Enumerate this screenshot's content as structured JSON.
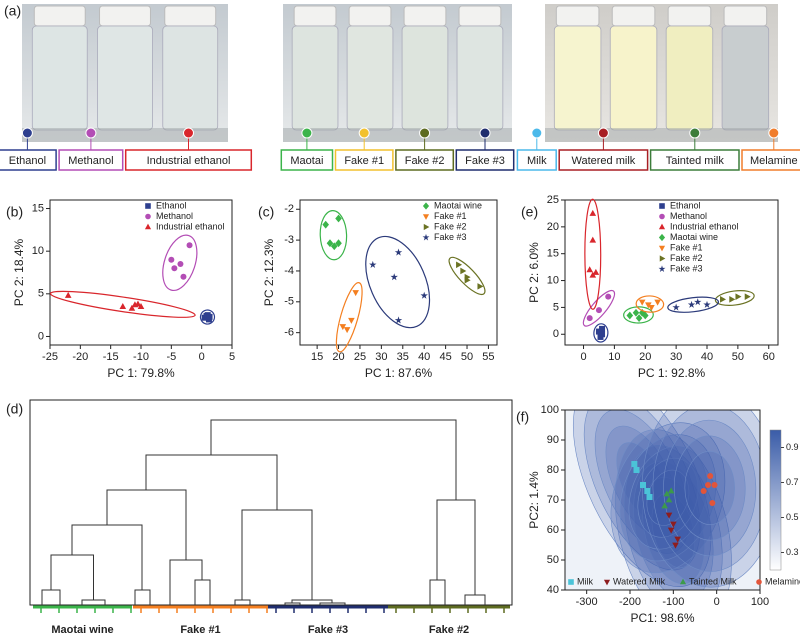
{
  "photos": {
    "panel": "(a)",
    "sets": [
      {
        "labels": [
          {
            "text": "Ethanol",
            "color": "#2e3f8f"
          },
          {
            "text": "Methanol",
            "color": "#b34db5"
          },
          {
            "text": "Industrial ethanol",
            "color": "#d9262c"
          }
        ]
      },
      {
        "labels": [
          {
            "text": "Maotai",
            "color": "#3bb44a"
          },
          {
            "text": "Fake #1",
            "color": "#f2c12e"
          },
          {
            "text": "Fake #2",
            "color": "#5d6b20"
          },
          {
            "text": "Fake #3",
            "color": "#1f2d6e"
          }
        ]
      },
      {
        "labels": [
          {
            "text": "Milk",
            "color": "#4bb9ea"
          },
          {
            "text": "Watered milk",
            "color": "#a81f24"
          },
          {
            "text": "Tainted milk",
            "color": "#3c7d3a"
          },
          {
            "text": "Melamine",
            "color": "#f07d2c"
          }
        ]
      }
    ]
  },
  "chart_data": [
    {
      "type": "scatter",
      "panel": "(b)",
      "xlabel": "PC 1: 79.8%",
      "ylabel": "PC 2: 18.4%",
      "xlim": [
        -25,
        5
      ],
      "xticks": [
        -25,
        -20,
        -15,
        -10,
        -5,
        0,
        5
      ],
      "ylim": [
        -1,
        16
      ],
      "yticks": [
        0,
        5,
        10,
        15
      ],
      "ellipses": true,
      "series": [
        {
          "name": "Ethanol",
          "color": "#2e3f8f",
          "marker": "square",
          "x": [
            0.5,
            1,
            1.2,
            0.8,
            1.3
          ],
          "y": [
            2.2,
            2.5,
            2.0,
            2.4,
            2.3
          ]
        },
        {
          "name": "Methanol",
          "color": "#b34db5",
          "marker": "circle",
          "x": [
            -2,
            -3.5,
            -4.5,
            -3,
            -5
          ],
          "y": [
            10.7,
            8.5,
            8,
            7,
            9
          ]
        },
        {
          "name": "Industrial ethanol",
          "color": "#d9262c",
          "marker": "tri-up",
          "x": [
            -22,
            -13,
            -11,
            -10.5,
            -10,
            -11.5
          ],
          "y": [
            4.8,
            3.5,
            3.7,
            3.8,
            3.5,
            3.3
          ]
        }
      ]
    },
    {
      "type": "scatter",
      "panel": "(c)",
      "xlabel": "PC 1: 87.6%",
      "ylabel": "PC 2: 12.3%",
      "xlim": [
        11,
        57
      ],
      "xticks": [
        15,
        20,
        25,
        30,
        35,
        40,
        45,
        50,
        55
      ],
      "ylim": [
        -6.4,
        -1.7
      ],
      "yticks": [
        -2,
        -3,
        -4,
        -5,
        -6
      ],
      "ellipses": true,
      "series": [
        {
          "name": "Maotai wine",
          "color": "#3bb44a",
          "marker": "diamond",
          "x": [
            17,
            20,
            18,
            19,
            20
          ],
          "y": [
            -2.5,
            -2.3,
            -3.1,
            -3.2,
            -3.1
          ]
        },
        {
          "name": "Fake #1",
          "color": "#f47f20",
          "marker": "tri-down",
          "x": [
            24,
            23,
            21,
            22
          ],
          "y": [
            -4.7,
            -5.6,
            -5.8,
            -5.9
          ]
        },
        {
          "name": "Fake #2",
          "color": "#6b7324",
          "marker": "tri-right",
          "x": [
            48,
            49,
            50,
            50,
            53
          ],
          "y": [
            -3.8,
            -4.0,
            -4.2,
            -4.3,
            -4.5
          ]
        },
        {
          "name": "Fake #3",
          "color": "#2b3a7a",
          "marker": "star",
          "x": [
            28,
            34,
            33,
            34,
            40
          ],
          "y": [
            -3.8,
            -3.4,
            -4.2,
            -5.6,
            -4.8
          ]
        }
      ]
    },
    {
      "type": "scatter",
      "panel": "(e)",
      "xlabel": "PC 1: 92.8%",
      "ylabel": "PC 2: 6.0%",
      "xlim": [
        -6,
        63
      ],
      "xticks": [
        0,
        10,
        20,
        30,
        40,
        50,
        60
      ],
      "ylim": [
        -2,
        25
      ],
      "yticks": [
        0,
        5,
        10,
        15,
        20,
        25
      ],
      "ellipses": true,
      "series": [
        {
          "name": "Ethanol",
          "color": "#2e3f8f",
          "marker": "square",
          "x": [
            5,
            6,
            5.5,
            6
          ],
          "y": [
            0.5,
            1,
            -0.5,
            0
          ]
        },
        {
          "name": "Methanol",
          "color": "#b34db5",
          "marker": "circle",
          "x": [
            2,
            8,
            5
          ],
          "y": [
            3,
            7,
            4.5
          ]
        },
        {
          "name": "Industrial ethanol",
          "color": "#d9262c",
          "marker": "tri-up",
          "x": [
            3,
            3,
            2,
            3,
            4
          ],
          "y": [
            22.5,
            17.5,
            12,
            11,
            11.5
          ]
        },
        {
          "name": "Maotai wine",
          "color": "#3bb44a",
          "marker": "diamond",
          "x": [
            15,
            17,
            18,
            19,
            20
          ],
          "y": [
            3.5,
            4,
            3,
            4,
            3.5
          ]
        },
        {
          "name": "Fake #1",
          "color": "#f47f20",
          "marker": "tri-down",
          "x": [
            19,
            22,
            24,
            21
          ],
          "y": [
            6,
            5,
            6,
            5.5
          ]
        },
        {
          "name": "Fake #2",
          "color": "#6b7324",
          "marker": "tri-right",
          "x": [
            45,
            48,
            50,
            53
          ],
          "y": [
            6.5,
            6.5,
            7,
            7
          ]
        },
        {
          "name": "Fake #3",
          "color": "#2b3a7a",
          "marker": "star",
          "x": [
            30,
            35,
            37,
            40
          ],
          "y": [
            5,
            5.5,
            6,
            5.5
          ]
        }
      ]
    },
    {
      "type": "dendrogram",
      "panel": "(d)",
      "categories": [
        "Maotai wine",
        "Fake #1",
        "Fake #3",
        "Fake #2"
      ],
      "colors": [
        "#3bb44a",
        "#f47f20",
        "#1f2d6e",
        "#5d6b20"
      ]
    },
    {
      "type": "scatter",
      "panel": "(f)",
      "xlabel": "PC1: 98.6%",
      "ylabel": "PC2: 1.4%",
      "xlim": [
        -350,
        100
      ],
      "xticks": [
        -300,
        -200,
        -100,
        0,
        100
      ],
      "ylim": [
        40,
        100
      ],
      "yticks": [
        40,
        50,
        60,
        70,
        80,
        90,
        100
      ],
      "contour": true,
      "colorbar_lim": [
        0.2,
        1.0
      ],
      "colorbar_ticks": [
        0.3,
        0.5,
        0.7,
        0.9
      ],
      "series": [
        {
          "name": "Milk",
          "color": "#4bc3d8",
          "marker": "square",
          "x": [
            -190,
            -185,
            -160,
            -155,
            -170
          ],
          "y": [
            82,
            80,
            73,
            71,
            75
          ]
        },
        {
          "name": "Watered Milk",
          "color": "#8e1d1f",
          "marker": "tri-down",
          "x": [
            -110,
            -105,
            -90,
            -95,
            -100
          ],
          "y": [
            65,
            60,
            57,
            55,
            62
          ]
        },
        {
          "name": "Tainted Milk",
          "color": "#3c9a4a",
          "marker": "tri-up",
          "x": [
            -115,
            -105,
            -110,
            -120
          ],
          "y": [
            72,
            73,
            70,
            68
          ]
        },
        {
          "name": "Melamine",
          "color": "#e2553a",
          "marker": "circle",
          "x": [
            -15,
            -20,
            -5,
            -30,
            -10
          ],
          "y": [
            78,
            75,
            75,
            73,
            69
          ]
        }
      ]
    }
  ]
}
